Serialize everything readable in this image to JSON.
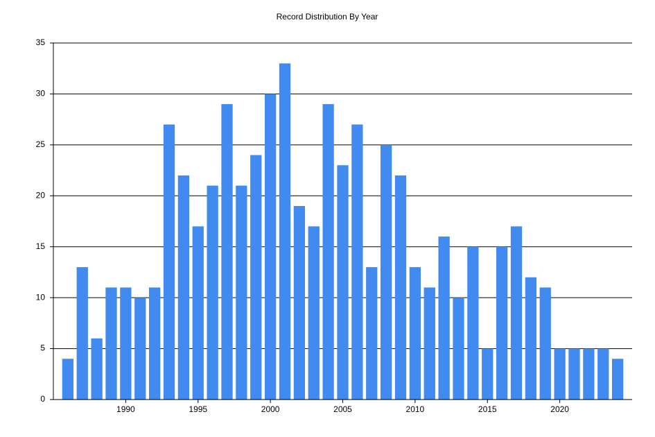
{
  "chart_data": {
    "type": "bar",
    "title": "Record Distribution By Year",
    "x": [
      1986,
      1987,
      1988,
      1989,
      1990,
      1991,
      1992,
      1993,
      1994,
      1995,
      1996,
      1997,
      1998,
      1999,
      2000,
      2001,
      2002,
      2003,
      2004,
      2005,
      2006,
      2007,
      2008,
      2009,
      2010,
      2011,
      2012,
      2013,
      2014,
      2015,
      2016,
      2017,
      2018,
      2019,
      2020,
      2021,
      2022,
      2023,
      2024
    ],
    "values": [
      4,
      13,
      6,
      11,
      11,
      10,
      11,
      27,
      22,
      17,
      21,
      29,
      21,
      24,
      30,
      33,
      19,
      17,
      29,
      23,
      27,
      13,
      25,
      22,
      13,
      11,
      16,
      10,
      15,
      5,
      15,
      17,
      12,
      11,
      5,
      5,
      5,
      5,
      4
    ],
    "color": "#418af0",
    "xlim": [
      1985,
      2025
    ],
    "xticks": [
      1990,
      1995,
      2000,
      2005,
      2010,
      2015,
      2020
    ],
    "ylim": [
      0,
      35
    ],
    "yticks": [
      0,
      5,
      10,
      15,
      20,
      25,
      30,
      35
    ],
    "grid": true
  }
}
